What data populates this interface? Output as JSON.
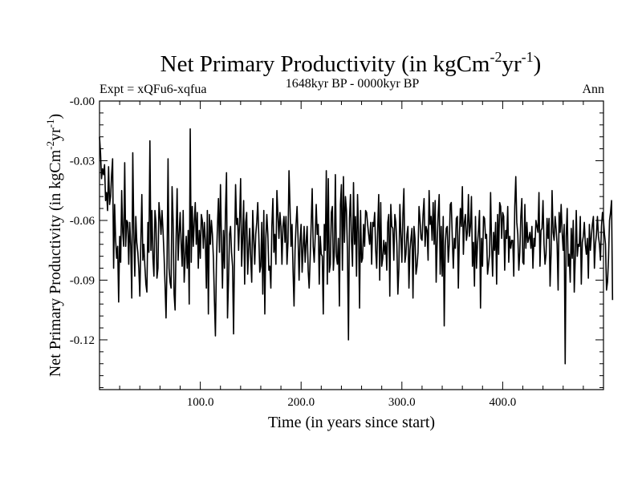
{
  "chart_data": {
    "type": "line",
    "title": {
      "main": "Net Primary Productivity (in kgCm",
      "sup1": "-2",
      "mid": "yr",
      "sup2": "-1",
      "end": ")"
    },
    "subtitle_left": "Expt = xQFu6-xqfua",
    "subtitle_center": "1648kyr BP - 0000kyr BP",
    "subtitle_right": "Ann",
    "xlabel": "Time (in years since start)",
    "ylabel": {
      "main": "Net Primary Productivity (in kgCm",
      "sup1": "-2",
      "mid": "yr",
      "sup2": "-1",
      "end": ")"
    },
    "xlim": [
      0,
      500
    ],
    "ylim": [
      -0.145,
      0.0
    ],
    "x_ticks": [
      100,
      200,
      300,
      400
    ],
    "x_tick_labels": [
      "100.0",
      "200.0",
      "300.0",
      "400.0"
    ],
    "y_ticks": [
      0.0,
      -0.03,
      -0.06,
      -0.09,
      -0.12
    ],
    "y_tick_labels": [
      "-0.00",
      "-0.03",
      "-0.06",
      "-0.09",
      "-0.12"
    ],
    "series": [
      {
        "name": "Net Primary Productivity (Ann)",
        "x_start": 0,
        "x_step": 1,
        "values": [
          -0.018,
          -0.026,
          -0.039,
          -0.034,
          -0.037,
          -0.032,
          -0.05,
          -0.046,
          -0.055,
          -0.033,
          -0.052,
          -0.048,
          -0.037,
          -0.029,
          -0.084,
          -0.052,
          -0.07,
          -0.079,
          -0.073,
          -0.101,
          -0.068,
          -0.081,
          -0.045,
          -0.066,
          -0.073,
          -0.031,
          -0.073,
          -0.06,
          -0.061,
          -0.082,
          -0.061,
          -0.073,
          -0.099,
          -0.026,
          -0.064,
          -0.088,
          -0.058,
          -0.071,
          -0.076,
          -0.084,
          -0.098,
          -0.071,
          -0.047,
          -0.08,
          -0.072,
          -0.083,
          -0.092,
          -0.096,
          -0.061,
          -0.076,
          -0.02,
          -0.075,
          -0.055,
          -0.079,
          -0.088,
          -0.055,
          -0.061,
          -0.089,
          -0.084,
          -0.051,
          -0.058,
          -0.067,
          -0.055,
          -0.065,
          -0.077,
          -0.092,
          -0.109,
          -0.081,
          -0.029,
          -0.084,
          -0.091,
          -0.094,
          -0.043,
          -0.06,
          -0.097,
          -0.105,
          -0.069,
          -0.044,
          -0.08,
          -0.067,
          -0.056,
          -0.072,
          -0.083,
          -0.055,
          -0.091,
          -0.079,
          -0.068,
          -0.084,
          -0.065,
          -0.102,
          -0.014,
          -0.081,
          -0.053,
          -0.073,
          -0.061,
          -0.051,
          -0.072,
          -0.056,
          -0.084,
          -0.065,
          -0.079,
          -0.057,
          -0.06,
          -0.074,
          -0.061,
          -0.07,
          -0.094,
          -0.055,
          -0.107,
          -0.057,
          -0.072,
          -0.06,
          -0.067,
          -0.079,
          -0.1,
          -0.118,
          -0.081,
          -0.063,
          -0.049,
          -0.076,
          -0.042,
          -0.071,
          -0.094,
          -0.065,
          -0.084,
          -0.055,
          -0.036,
          -0.109,
          -0.09,
          -0.067,
          -0.063,
          -0.076,
          -0.083,
          -0.117,
          -0.074,
          -0.042,
          -0.062,
          -0.059,
          -0.075,
          -0.06,
          -0.039,
          -0.083,
          -0.069,
          -0.05,
          -0.092,
          -0.061,
          -0.056,
          -0.087,
          -0.074,
          -0.064,
          -0.079,
          -0.091,
          -0.055,
          -0.069,
          -0.082,
          -0.067,
          -0.061,
          -0.051,
          -0.067,
          -0.086,
          -0.083,
          -0.061,
          -0.097,
          -0.055,
          -0.107,
          -0.069,
          -0.057,
          -0.067,
          -0.085,
          -0.083,
          -0.094,
          -0.063,
          -0.049,
          -0.076,
          -0.067,
          -0.082,
          -0.045,
          -0.057,
          -0.069,
          -0.056,
          -0.063,
          -0.082,
          -0.063,
          -0.058,
          -0.071,
          -0.058,
          -0.082,
          -0.071,
          -0.035,
          -0.053,
          -0.073,
          -0.062,
          -0.085,
          -0.103,
          -0.075,
          -0.062,
          -0.053,
          -0.069,
          -0.09,
          -0.07,
          -0.062,
          -0.086,
          -0.074,
          -0.063,
          -0.081,
          -0.071,
          -0.063,
          -0.085,
          -0.094,
          -0.079,
          -0.062,
          -0.044,
          -0.073,
          -0.081,
          -0.068,
          -0.052,
          -0.067,
          -0.062,
          -0.092,
          -0.068,
          -0.077,
          -0.078,
          -0.107,
          -0.062,
          -0.075,
          -0.035,
          -0.092,
          -0.039,
          -0.086,
          -0.082,
          -0.056,
          -0.053,
          -0.085,
          -0.076,
          -0.037,
          -0.078,
          -0.082,
          -0.069,
          -0.103,
          -0.052,
          -0.042,
          -0.085,
          -0.038,
          -0.071,
          -0.048,
          -0.055,
          -0.076,
          -0.12,
          -0.059,
          -0.047,
          -0.07,
          -0.083,
          -0.041,
          -0.072,
          -0.058,
          -0.088,
          -0.047,
          -0.066,
          -0.104,
          -0.055,
          -0.081,
          -0.079,
          -0.062,
          -0.073,
          -0.055,
          -0.056,
          -0.062,
          -0.067,
          -0.072,
          -0.061,
          -0.082,
          -0.061,
          -0.063,
          -0.056,
          -0.075,
          -0.084,
          -0.064,
          -0.047,
          -0.09,
          -0.051,
          -0.083,
          -0.079,
          -0.07,
          -0.077,
          -0.071,
          -0.085,
          -0.061,
          -0.057,
          -0.098,
          -0.052,
          -0.063,
          -0.064,
          -0.08,
          -0.057,
          -0.061,
          -0.072,
          -0.097,
          -0.084,
          -0.052,
          -0.067,
          -0.081,
          -0.057,
          -0.044,
          -0.081,
          -0.077,
          -0.067,
          -0.063,
          -0.094,
          -0.075,
          -0.069,
          -0.064,
          -0.099,
          -0.063,
          -0.069,
          -0.087,
          -0.083,
          -0.076,
          -0.053,
          -0.06,
          -0.069,
          -0.07,
          -0.057,
          -0.049,
          -0.073,
          -0.063,
          -0.065,
          -0.08,
          -0.045,
          -0.062,
          -0.058,
          -0.07,
          -0.051,
          -0.072,
          -0.05,
          -0.091,
          -0.071,
          -0.057,
          -0.047,
          -0.087,
          -0.063,
          -0.088,
          -0.058,
          -0.113,
          -0.073,
          -0.064,
          -0.063,
          -0.081,
          -0.072,
          -0.052,
          -0.051,
          -0.069,
          -0.084,
          -0.069,
          -0.074,
          -0.059,
          -0.058,
          -0.094,
          -0.068,
          -0.054,
          -0.063,
          -0.043,
          -0.077,
          -0.061,
          -0.057,
          -0.07,
          -0.066,
          -0.047,
          -0.068,
          -0.063,
          -0.048,
          -0.083,
          -0.071,
          -0.093,
          -0.058,
          -0.084,
          -0.072,
          -0.065,
          -0.055,
          -0.104,
          -0.069,
          -0.083,
          -0.058,
          -0.059,
          -0.069,
          -0.067,
          -0.087,
          -0.082,
          -0.077,
          -0.046,
          -0.072,
          -0.088,
          -0.066,
          -0.075,
          -0.061,
          -0.092,
          -0.057,
          -0.077,
          -0.051,
          -0.053,
          -0.069,
          -0.056,
          -0.058,
          -0.085,
          -0.065,
          -0.069,
          -0.053,
          -0.081,
          -0.068,
          -0.074,
          -0.07,
          -0.07,
          -0.088,
          -0.053,
          -0.038,
          -0.061,
          -0.067,
          -0.085,
          -0.076,
          -0.058,
          -0.049,
          -0.081,
          -0.082,
          -0.052,
          -0.074,
          -0.061,
          -0.071,
          -0.069,
          -0.066,
          -0.074,
          -0.063,
          -0.084,
          -0.069,
          -0.073,
          -0.06,
          -0.063,
          -0.066,
          -0.046,
          -0.083,
          -0.065,
          -0.064,
          -0.05,
          -0.072,
          -0.082,
          -0.077,
          -0.059,
          -0.069,
          -0.059,
          -0.093,
          -0.077,
          -0.045,
          -0.066,
          -0.07,
          -0.058,
          -0.064,
          -0.072,
          -0.095,
          -0.056,
          -0.066,
          -0.052,
          -0.066,
          -0.075,
          -0.062,
          -0.132,
          -0.068,
          -0.054,
          -0.083,
          -0.077,
          -0.091,
          -0.064,
          -0.079,
          -0.06,
          -0.096,
          -0.079,
          -0.055,
          -0.078,
          -0.072,
          -0.073,
          -0.058,
          -0.092,
          -0.071,
          -0.068,
          -0.061,
          -0.072,
          -0.077,
          -0.069,
          -0.089,
          -0.062,
          -0.075,
          -0.068,
          -0.062,
          -0.058,
          -0.084,
          -0.072,
          -0.067,
          -0.058,
          -0.068,
          -0.072,
          -0.08,
          -0.063,
          -0.056,
          -0.06,
          -0.067,
          -0.072,
          -0.095,
          -0.091,
          -0.079,
          -0.06,
          -0.056,
          -0.05,
          -0.1
        ]
      }
    ]
  }
}
